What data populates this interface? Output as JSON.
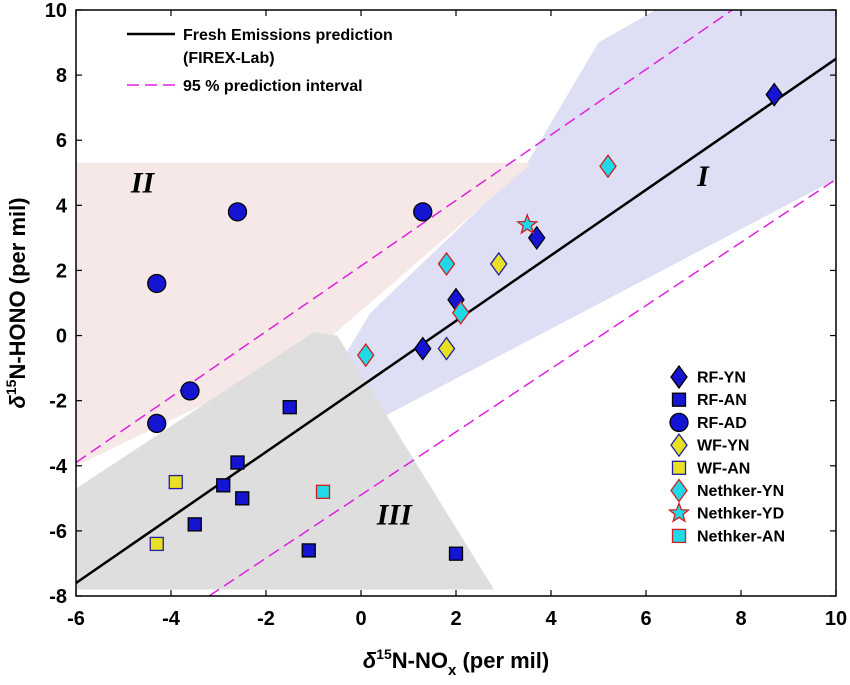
{
  "chart_data": {
    "type": "scatter",
    "xlabel": {
      "pre": "δ",
      "sup": "15",
      "mid": "N-NO",
      "sub": "x",
      "post": " (per mil)"
    },
    "ylabel": {
      "pre": "δ",
      "sup": "15",
      "post": "N-HONO (per mil)"
    },
    "xlim": [
      -6,
      10
    ],
    "ylim": [
      -8,
      10
    ],
    "x_ticks": [
      -6,
      -4,
      -2,
      0,
      2,
      4,
      6,
      8,
      10
    ],
    "y_ticks": [
      -8,
      -6,
      -4,
      -2,
      0,
      2,
      4,
      6,
      8,
      10
    ],
    "grid": false,
    "regions": [
      {
        "label": "I",
        "color": "#dedef4",
        "label_at": [
          7.2,
          4.6
        ],
        "polygon": [
          [
            0.2,
            0.7
          ],
          [
            3.5,
            5.3
          ],
          [
            5,
            9.0
          ],
          [
            6.2,
            10
          ],
          [
            10,
            10
          ],
          [
            10,
            4.8
          ],
          [
            0.2,
            -2.7
          ],
          [
            -1.0,
            -2.2
          ]
        ]
      },
      {
        "label": "II",
        "color": "#f6e8e6",
        "label_at": [
          -4.6,
          4.4
        ],
        "polygon": [
          [
            -6,
            5.3
          ],
          [
            3.6,
            5.3
          ],
          [
            -1,
            -0.5
          ],
          [
            -6,
            -4.0
          ]
        ]
      },
      {
        "label": "III",
        "color": "#dedede",
        "label_at": [
          0.7,
          -5.8
        ],
        "polygon": [
          [
            -1.0,
            0.1
          ],
          [
            -0.5,
            0
          ],
          [
            2.8,
            -7.8
          ],
          [
            -6,
            -7.8
          ],
          [
            -6,
            -4.7
          ]
        ]
      }
    ],
    "fit_line": {
      "name": "Fresh Emissions prediction",
      "name_line2": "(FIREX-Lab)",
      "x": [
        -6,
        10
      ],
      "y": [
        -7.6,
        8.5
      ],
      "color": "#000000"
    },
    "prediction_interval": {
      "name": "95 % prediction interval",
      "color": "#e020e0",
      "upper": {
        "x": [
          -6,
          10
        ],
        "y": [
          -3.9,
          12.2
        ]
      },
      "lower": {
        "x": [
          -3.2,
          10
        ],
        "y": [
          -8,
          4.8
        ]
      }
    },
    "series": [
      {
        "name": "RF-YN",
        "marker": "diamond",
        "fill": "#1414d2",
        "stroke": "#000000",
        "points": [
          [
            8.7,
            7.4
          ],
          [
            3.7,
            3.0
          ],
          [
            2.0,
            1.1
          ],
          [
            1.3,
            -0.4
          ]
        ]
      },
      {
        "name": "RF-AN",
        "marker": "square",
        "fill": "#1414d2",
        "stroke": "#000000",
        "points": [
          [
            -1.5,
            -2.2
          ],
          [
            -2.6,
            -3.9
          ],
          [
            -2.9,
            -4.6
          ],
          [
            -2.5,
            -5.0
          ],
          [
            -3.5,
            -5.8
          ],
          [
            -1.1,
            -6.6
          ],
          [
            2.0,
            -6.7
          ]
        ]
      },
      {
        "name": "RF-AD",
        "marker": "circle",
        "fill": "#1414d2",
        "stroke": "#000000",
        "points": [
          [
            -2.6,
            3.8
          ],
          [
            1.3,
            3.8
          ],
          [
            -4.3,
            1.6
          ],
          [
            -3.6,
            -1.7
          ],
          [
            -4.3,
            -2.7
          ]
        ]
      },
      {
        "name": "WF-YN",
        "marker": "diamond",
        "fill": "#e8e022",
        "stroke": "#2020a0",
        "points": [
          [
            2.9,
            2.2
          ],
          [
            1.8,
            -0.4
          ]
        ]
      },
      {
        "name": "WF-AN",
        "marker": "square",
        "fill": "#e8e022",
        "stroke": "#2020a0",
        "points": [
          [
            -3.9,
            -4.5
          ],
          [
            -4.3,
            -6.4
          ]
        ]
      },
      {
        "name": "Nethker-YN",
        "marker": "diamond",
        "fill": "#20d8e8",
        "stroke": "#d02020",
        "points": [
          [
            5.2,
            5.2
          ],
          [
            1.8,
            2.2
          ],
          [
            2.1,
            0.7
          ],
          [
            0.1,
            -0.6
          ]
        ]
      },
      {
        "name": "Nethker-YD",
        "marker": "star",
        "fill": "#20d8e8",
        "stroke": "#d02020",
        "points": [
          [
            3.5,
            3.4
          ]
        ]
      },
      {
        "name": "Nethker-AN",
        "marker": "square",
        "fill": "#20d8e8",
        "stroke": "#d02020",
        "points": [
          [
            -0.8,
            -4.8
          ]
        ]
      }
    ]
  }
}
